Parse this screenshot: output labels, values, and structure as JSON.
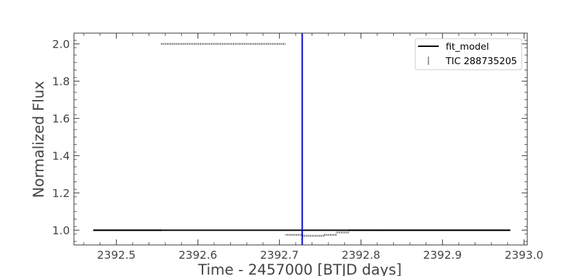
{
  "chart_data": {
    "type": "scatter",
    "xlabel": "Time - 2457000 [BTJD days]",
    "ylabel": "Normalized Flux",
    "xlim": [
      2392.448,
      2393.004
    ],
    "ylim": [
      0.921,
      2.058
    ],
    "xticks": [
      2392.5,
      2392.6,
      2392.7,
      2392.8,
      2392.9,
      2393.0
    ],
    "xtick_labels": [
      "2392.5",
      "2392.6",
      "2392.7",
      "2392.8",
      "2392.9",
      "2393.0"
    ],
    "yticks": [
      1.0,
      1.2,
      1.4,
      1.6,
      1.8,
      2.0
    ],
    "ytick_labels": [
      "1.0",
      "1.2",
      "1.4",
      "1.6",
      "1.8",
      "2.0"
    ],
    "grid": false,
    "legend_position": "top-right",
    "vertical_line": {
      "x": 2392.728,
      "color": "#0000cc"
    },
    "series": [
      {
        "name": "fit_model",
        "kind": "line",
        "color": "#000000",
        "x": [
          2392.472,
          2392.983
        ],
        "y": [
          1.0,
          1.0
        ]
      },
      {
        "name": "TIC 288735205",
        "kind": "errorbar",
        "color": "#000000",
        "segments": [
          {
            "x_start": 2392.472,
            "x_end": 2392.555,
            "y": 1.0
          },
          {
            "x_start": 2392.555,
            "x_end": 2392.708,
            "y": 2.0
          },
          {
            "x_start": 2392.708,
            "x_end": 2392.729,
            "y": 0.975
          },
          {
            "x_start": 2392.729,
            "x_end": 2392.755,
            "y": 0.97
          },
          {
            "x_start": 2392.755,
            "x_end": 2392.77,
            "y": 0.975
          },
          {
            "x_start": 2392.77,
            "x_end": 2392.785,
            "y": 0.988
          },
          {
            "x_start": 2392.785,
            "x_end": 2392.983,
            "y": 1.0
          }
        ]
      }
    ]
  }
}
